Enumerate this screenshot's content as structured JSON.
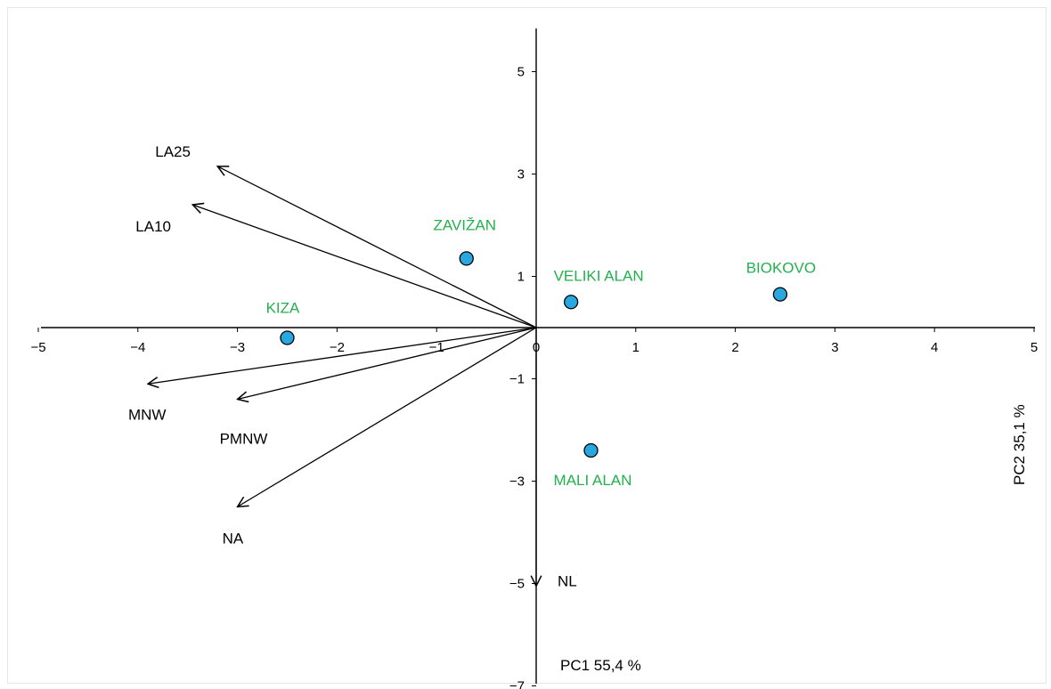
{
  "colors": {
    "axis": "#000000",
    "site_fill": "#29a8e0",
    "site_stroke": "#000000",
    "site_label": "#22b14c",
    "vector": "#000000"
  },
  "chart_data": {
    "type": "scatter",
    "subtype": "pca-biplot",
    "title": "",
    "xlabel": "PC1 55,4 %",
    "ylabel": "PC2 35,1 %",
    "xlim": [
      -5,
      5
    ],
    "ylim": [
      -7,
      6
    ],
    "x_ticks": [
      "−5",
      "−4",
      "−3",
      "−2",
      "−1",
      "0",
      "1",
      "2",
      "3",
      "4",
      "5"
    ],
    "x_tick_values": [
      -5,
      -4,
      -3,
      -2,
      -1,
      0,
      1,
      2,
      3,
      4,
      5
    ],
    "y_ticks": [
      "5",
      "3",
      "1",
      "−1",
      "−3",
      "−5",
      "−7"
    ],
    "y_tick_values": [
      5,
      3,
      1,
      -1,
      -3,
      -5,
      -7
    ],
    "grid": false,
    "sites": [
      {
        "name": "KIZA",
        "x": -2.5,
        "y": -0.2
      },
      {
        "name": "ZAVIŽAN",
        "x": -0.7,
        "y": 1.35
      },
      {
        "name": "VELIKI ALAN",
        "x": 0.35,
        "y": 0.5
      },
      {
        "name": "BIOKOVO",
        "x": 2.45,
        "y": 0.65
      },
      {
        "name": "MALI ALAN",
        "x": 0.55,
        "y": -2.4
      }
    ],
    "vectors": [
      {
        "name": "LA25",
        "x": -3.2,
        "y": 3.15
      },
      {
        "name": "LA10",
        "x": -3.45,
        "y": 2.4
      },
      {
        "name": "MNW",
        "x": -3.9,
        "y": -1.1
      },
      {
        "name": "PMNW",
        "x": -3.0,
        "y": -1.4
      },
      {
        "name": "NA",
        "x": -3.0,
        "y": -3.5
      },
      {
        "name": "NL",
        "x": 0.0,
        "y": -5.05
      }
    ]
  }
}
